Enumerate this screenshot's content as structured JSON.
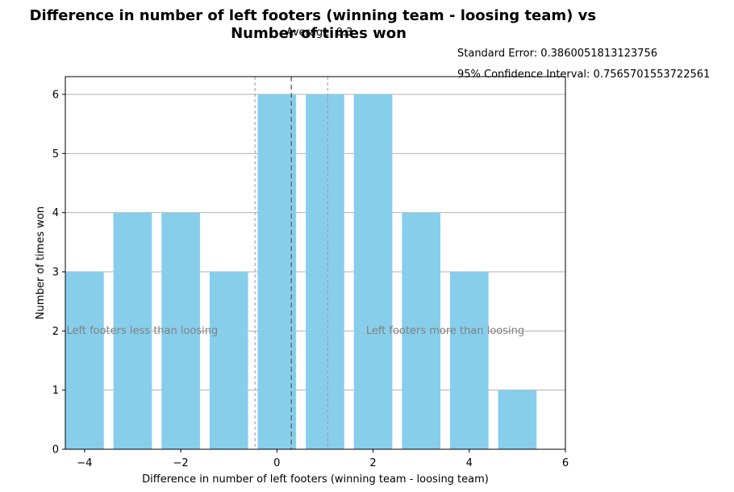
{
  "chart_data": {
    "type": "bar",
    "title": "Difference in number of left footers (winning team - loosing team) vs\nNumber of times won",
    "xlabel": "Difference in number of left footers (winning team - loosing team)",
    "ylabel": "Number of times won",
    "x": [
      -4,
      -3,
      -2,
      -1,
      0,
      1,
      2,
      3,
      4,
      5
    ],
    "values": [
      3,
      4,
      4,
      3,
      6,
      6,
      6,
      4,
      3,
      1
    ],
    "xlim": [
      -4.4,
      6
    ],
    "ylim": [
      0,
      6.3
    ],
    "xticks": [
      -4,
      -2,
      0,
      2,
      4,
      6
    ],
    "yticks": [
      0,
      1,
      2,
      3,
      4,
      5,
      6
    ],
    "grid": "horizontal",
    "bar_color": "#87CEEB",
    "mean": 0.3,
    "ci_low": -0.456,
    "ci_high": 1.056,
    "annotations": {
      "average": "Average: 0.3",
      "standard_error": "Standard Error: 0.3860051813123756",
      "confidence_interval": "95% Confidence Interval: 0.7565701553722561",
      "left_region": "Left footers less than loosing",
      "right_region": "Left footers more than loosing"
    },
    "region_label_x": {
      "left": -2.8,
      "right": 3.5
    },
    "region_label_y": 2
  }
}
